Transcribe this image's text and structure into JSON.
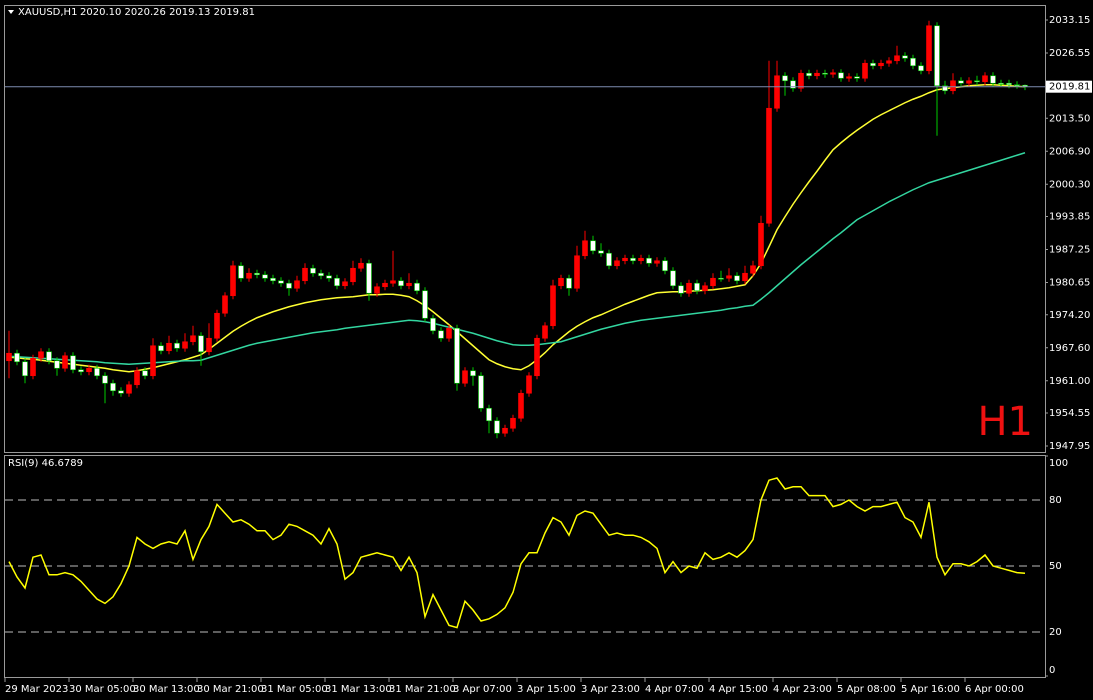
{
  "chart_data": [
    {
      "type": "candlestick",
      "header": {
        "symbol": "XAUUSD,H1",
        "ohlc": "2020.10 2020.26 2019.13 2019.81"
      },
      "badge": "H1",
      "categories": [
        "29 Mar 2023",
        null,
        null,
        null,
        null,
        null,
        null,
        null,
        "30 Mar 05:00",
        null,
        null,
        null,
        null,
        null,
        null,
        null,
        "30 Mar 13:00",
        null,
        null,
        null,
        null,
        null,
        null,
        null,
        "30 Mar 21:00",
        null,
        null,
        null,
        null,
        null,
        null,
        null,
        "31 Mar 05:00",
        null,
        null,
        null,
        null,
        null,
        null,
        null,
        "31 Mar 13:00",
        null,
        null,
        null,
        null,
        null,
        null,
        null,
        "31 Mar 21:00",
        null,
        null,
        null,
        null,
        null,
        null,
        null,
        "3 Apr 07:00",
        null,
        null,
        null,
        null,
        null,
        null,
        null,
        "3 Apr 15:00",
        null,
        null,
        null,
        null,
        null,
        null,
        null,
        "3 Apr 23:00",
        null,
        null,
        null,
        null,
        null,
        null,
        null,
        "4 Apr 07:00",
        null,
        null,
        null,
        null,
        null,
        null,
        null,
        "4 Apr 15:00",
        null,
        null,
        null,
        null,
        null,
        null,
        null,
        "4 Apr 23:00",
        null,
        null,
        null,
        null,
        null,
        null,
        null,
        "5 Apr 08:00",
        null,
        null,
        null,
        null,
        null,
        null,
        null,
        "5 Apr 16:00",
        null,
        null,
        null,
        null,
        null,
        null,
        null,
        "6 Apr 00:00",
        null,
        null,
        null,
        null,
        null,
        null,
        null
      ],
      "open": [
        1965.0,
        1966.5,
        1964.8,
        1962.0,
        1965.5,
        1966.8,
        1965.0,
        1963.5,
        1966.0,
        1963.2,
        1962.8,
        1963.5,
        1962.0,
        1960.5,
        1959.0,
        1958.5,
        1960.2,
        1963.0,
        1962.0,
        1968.0,
        1967.0,
        1968.5,
        1967.5,
        1968.8,
        1970.0,
        1966.8,
        1969.5,
        1974.5,
        1978.0,
        1984.0,
        1981.5,
        1982.5,
        1982.2,
        1981.5,
        1981.0,
        1980.5,
        1979.5,
        1981.0,
        1983.5,
        1982.5,
        1982.0,
        1981.5,
        1980.0,
        1980.8,
        1983.5,
        1984.5,
        1978.5,
        1979.8,
        1980.5,
        1981.0,
        1980.0,
        1980.5,
        1979.0,
        1973.5,
        1971.0,
        1969.5,
        1971.5,
        1960.5,
        1963.0,
        1962.0,
        1955.5,
        1953.0,
        1950.5,
        1951.5,
        1953.5,
        1958.5,
        1962.0,
        1969.5,
        1972.0,
        1980.0,
        1981.5,
        1979.5,
        1986.0,
        1989.0,
        1987.0,
        1986.5,
        1984.0,
        1985.0,
        1985.5,
        1985.0,
        1985.5,
        1984.5,
        1985.0,
        1983.0,
        1980.0,
        1978.5,
        1980.5,
        1979.0,
        1980.0,
        1981.5,
        1981.5,
        1982.0,
        1981.0,
        1982.5,
        1984.0,
        1992.5,
        2015.5,
        2022.0,
        2021.0,
        2019.5,
        2022.5,
        2022.0,
        2022.5,
        2022.3,
        2022.6,
        2021.5,
        2021.8,
        2021.5,
        2024.5,
        2024.0,
        2024.5,
        2025.0,
        2026.0,
        2025.5,
        2024.0,
        2023.0,
        2032.0,
        2020.0,
        2019.0,
        2021.0,
        2020.5,
        2021.0,
        2020.8,
        2022.0,
        2020.5,
        2020.5,
        2020.2,
        2020.1
      ],
      "high": [
        1971.0,
        1967.2,
        1965.5,
        1966.2,
        1967.5,
        1967.5,
        1965.7,
        1966.7,
        1966.7,
        1963.9,
        1964.2,
        1964.2,
        1962.7,
        1961.2,
        1959.7,
        1960.9,
        1963.7,
        1963.7,
        1969.5,
        1968.7,
        1970.0,
        1969.2,
        1970.5,
        1972.0,
        1970.7,
        1972.5,
        1975.2,
        1978.7,
        1985.0,
        1984.7,
        1983.5,
        1983.2,
        1982.9,
        1982.2,
        1981.7,
        1981.2,
        1982.0,
        1984.5,
        1984.2,
        1983.2,
        1982.7,
        1982.2,
        1981.5,
        1985.0,
        1985.5,
        1985.2,
        1980.5,
        1981.2,
        1987.0,
        1981.7,
        1982.5,
        1981.2,
        1979.7,
        1974.2,
        1971.7,
        1972.2,
        1972.2,
        1963.7,
        1963.7,
        1962.7,
        1956.2,
        1953.7,
        1952.2,
        1954.2,
        1959.2,
        1962.7,
        1970.2,
        1972.7,
        1981.2,
        1982.2,
        1982.2,
        1988.0,
        1991.0,
        1990.0,
        1988.5,
        1987.2,
        1985.7,
        1986.2,
        1986.2,
        1986.2,
        1986.2,
        1985.7,
        1985.7,
        1983.7,
        1980.7,
        1981.2,
        1981.2,
        1980.7,
        1982.5,
        1983.0,
        1983.5,
        1982.7,
        1984.0,
        1985.0,
        1994.0,
        2025.0,
        2025.0,
        2022.7,
        2021.7,
        2023.2,
        2023.2,
        2023.2,
        2023.2,
        2023.3,
        2023.3,
        2022.5,
        2022.5,
        2025.2,
        2025.2,
        2025.2,
        2025.7,
        2028.0,
        2026.7,
        2026.2,
        2024.7,
        2033.0,
        2032.7,
        2021.0,
        2022.5,
        2021.7,
        2021.7,
        2022.0,
        2022.7,
        2022.7,
        2021.2,
        2021.2,
        2020.9,
        2020.26
      ],
      "low": [
        1961.5,
        1964.1,
        1960.5,
        1961.3,
        1964.8,
        1964.3,
        1962.0,
        1962.8,
        1962.5,
        1962.1,
        1962.1,
        1961.3,
        1956.5,
        1958.0,
        1957.8,
        1957.8,
        1959.5,
        1961.3,
        1961.3,
        1966.3,
        1966.3,
        1966.8,
        1966.8,
        1968.1,
        1964.0,
        1966.1,
        1968.8,
        1973.8,
        1977.3,
        1980.8,
        1980.8,
        1981.5,
        1980.8,
        1980.3,
        1979.8,
        1978.0,
        1978.8,
        1980.3,
        1981.8,
        1981.3,
        1980.8,
        1979.3,
        1979.3,
        1980.1,
        1982.8,
        1977.0,
        1977.8,
        1979.1,
        1979.8,
        1979.3,
        1979.3,
        1978.3,
        1972.8,
        1970.3,
        1968.8,
        1968.8,
        1959.0,
        1959.8,
        1960.0,
        1954.8,
        1950.5,
        1949.5,
        1949.8,
        1950.8,
        1952.8,
        1957.8,
        1961.3,
        1968.8,
        1971.3,
        1979.3,
        1978.0,
        1978.8,
        1985.3,
        1986.3,
        1985.8,
        1983.3,
        1983.3,
        1984.3,
        1984.3,
        1984.3,
        1983.8,
        1983.8,
        1982.3,
        1979.3,
        1977.8,
        1977.8,
        1978.3,
        1978.3,
        1979.3,
        1980.8,
        1980.8,
        1980.3,
        1980.3,
        1981.8,
        1983.3,
        1991.8,
        2014.8,
        2018.0,
        2018.8,
        2018.8,
        2021.3,
        2021.3,
        2021.6,
        2021.6,
        2020.8,
        2020.8,
        2020.8,
        2020.8,
        2023.3,
        2023.3,
        2023.8,
        2024.3,
        2024.8,
        2023.3,
        2022.3,
        2022.3,
        2010.0,
        2018.3,
        2018.3,
        2019.8,
        2019.8,
        2020.1,
        2020.1,
        2019.8,
        2019.8,
        2019.5,
        2019.4,
        2019.13
      ],
      "close": [
        1966.5,
        1964.8,
        1962.0,
        1965.5,
        1966.8,
        1965.0,
        1963.5,
        1966.0,
        1963.2,
        1962.8,
        1963.5,
        1962.0,
        1960.5,
        1959.0,
        1958.5,
        1960.2,
        1963.0,
        1962.0,
        1968.0,
        1967.0,
        1968.5,
        1967.5,
        1968.8,
        1970.0,
        1966.8,
        1969.5,
        1974.5,
        1978.0,
        1984.0,
        1981.5,
        1982.5,
        1982.2,
        1981.5,
        1981.0,
        1980.5,
        1979.5,
        1981.0,
        1983.5,
        1982.5,
        1982.0,
        1981.5,
        1980.0,
        1980.8,
        1983.5,
        1984.5,
        1978.5,
        1979.8,
        1980.5,
        1981.0,
        1980.0,
        1980.5,
        1979.0,
        1973.5,
        1971.0,
        1969.5,
        1971.5,
        1960.5,
        1963.0,
        1962.0,
        1955.5,
        1953.0,
        1950.5,
        1951.5,
        1953.5,
        1958.5,
        1962.0,
        1969.5,
        1972.0,
        1980.0,
        1981.5,
        1979.5,
        1986.0,
        1989.0,
        1987.0,
        1986.5,
        1984.0,
        1985.0,
        1985.5,
        1985.0,
        1985.5,
        1984.5,
        1985.0,
        1983.0,
        1980.0,
        1978.5,
        1980.5,
        1979.0,
        1980.0,
        1981.5,
        1981.5,
        1982.0,
        1981.0,
        1982.5,
        1984.0,
        1992.5,
        2015.5,
        2022.0,
        2021.0,
        2019.5,
        2022.5,
        2022.0,
        2022.5,
        2022.3,
        2022.6,
        2021.5,
        2021.8,
        2021.5,
        2024.5,
        2024.0,
        2024.5,
        2025.0,
        2026.0,
        2025.5,
        2024.0,
        2023.0,
        2032.0,
        2020.0,
        2019.0,
        2021.0,
        2020.5,
        2021.0,
        2020.8,
        2022.0,
        2020.5,
        2020.5,
        2020.2,
        2020.1,
        2019.81
      ],
      "up_color": "#ff0000",
      "down_color": "#ffffff",
      "down_outline": "#00cc00",
      "lines": [
        {
          "color": "#ffff33",
          "values": [
            1965.7,
            1965.6,
            1965.4,
            1965.3,
            1965.1,
            1964.9,
            1964.7,
            1964.5,
            1964.3,
            1964.1,
            1963.9,
            1963.7,
            1963.5,
            1963.2,
            1963.0,
            1962.8,
            1963.0,
            1963.3,
            1963.6,
            1964.0,
            1964.4,
            1964.8,
            1965.2,
            1965.7,
            1966.2,
            1967.3,
            1968.5,
            1969.7,
            1970.9,
            1971.9,
            1972.8,
            1973.6,
            1974.2,
            1974.8,
            1975.3,
            1975.8,
            1976.2,
            1976.6,
            1976.9,
            1977.2,
            1977.4,
            1977.6,
            1977.7,
            1977.8,
            1978.0,
            1978.2,
            1978.2,
            1978.3,
            1978.3,
            1978.1,
            1977.8,
            1977.0,
            1976.0,
            1974.8,
            1973.5,
            1972.2,
            1970.8,
            1969.4,
            1968.0,
            1966.6,
            1965.2,
            1964.4,
            1963.8,
            1963.4,
            1963.2,
            1964.0,
            1965.2,
            1966.6,
            1968.2,
            1969.5,
            1970.8,
            1971.9,
            1972.8,
            1973.6,
            1974.2,
            1974.9,
            1975.6,
            1976.3,
            1976.9,
            1977.5,
            1978.1,
            1978.6,
            1978.7,
            1978.8,
            1978.8,
            1978.9,
            1979.0,
            1979.1,
            1979.2,
            1979.4,
            1979.6,
            1979.9,
            1980.2,
            1982.0,
            1984.5,
            1987.8,
            1991.2,
            1993.8,
            1996.3,
            1998.6,
            2000.8,
            2002.9,
            2005.1,
            2007.2,
            2008.6,
            2009.9,
            2011.1,
            2012.2,
            2013.3,
            2014.2,
            2015.0,
            2015.8,
            2016.6,
            2017.3,
            2017.9,
            2018.6,
            2019.2,
            2019.4,
            2019.6,
            2019.8,
            2020.0,
            2020.1,
            2020.2,
            2020.2,
            2020.1,
            2020.0,
            2019.9,
            2019.8
          ]
        },
        {
          "color": "#33d6a0",
          "values": [
            1965.9,
            1965.8,
            1965.7,
            1965.6,
            1965.5,
            1965.4,
            1965.3,
            1965.2,
            1965.1,
            1965.0,
            1964.9,
            1964.8,
            1964.6,
            1964.5,
            1964.4,
            1964.3,
            1964.4,
            1964.5,
            1964.6,
            1964.7,
            1964.8,
            1964.9,
            1965.0,
            1965.0,
            1965.1,
            1965.6,
            1966.1,
            1966.6,
            1967.1,
            1967.6,
            1968.1,
            1968.5,
            1968.8,
            1969.1,
            1969.4,
            1969.7,
            1970.0,
            1970.3,
            1970.6,
            1970.8,
            1971.0,
            1971.2,
            1971.5,
            1971.7,
            1971.9,
            1972.1,
            1972.3,
            1972.5,
            1972.7,
            1972.9,
            1973.1,
            1973.0,
            1972.8,
            1972.5,
            1972.1,
            1971.7,
            1971.3,
            1970.9,
            1970.5,
            1970.0,
            1969.5,
            1969.0,
            1968.6,
            1968.2,
            1968.1,
            1968.1,
            1968.2,
            1968.4,
            1968.6,
            1968.8,
            1969.3,
            1969.8,
            1970.3,
            1970.8,
            1971.3,
            1971.7,
            1972.1,
            1972.5,
            1972.8,
            1973.1,
            1973.3,
            1973.5,
            1973.7,
            1973.9,
            1974.1,
            1974.3,
            1974.5,
            1974.7,
            1974.9,
            1975.1,
            1975.4,
            1975.6,
            1975.9,
            1976.1,
            1977.3,
            1978.6,
            1980.0,
            1981.4,
            1982.8,
            1984.2,
            1985.5,
            1986.8,
            1988.1,
            1989.4,
            1990.6,
            1991.9,
            1993.2,
            1994.1,
            1995.0,
            1995.9,
            1996.8,
            1997.6,
            1998.4,
            1999.2,
            1999.9,
            2000.6,
            2001.1,
            2001.6,
            2002.1,
            2002.6,
            2003.1,
            2003.6,
            2004.1,
            2004.6,
            2005.1,
            2005.6,
            2006.1,
            2006.6
          ]
        }
      ],
      "ylim": [
        1946.95,
        2035.75
      ],
      "yticks": [
        2033.15,
        2026.55,
        {
          "value": 2013.5,
          "label": "2013.50"
        },
        {
          "value": 2006.9,
          "label": "2006.90"
        },
        {
          "value": 2000.3,
          "label": "2000.30"
        },
        1993.85,
        1987.25,
        1980.65,
        {
          "value": 1974.2,
          "label": "1974.20"
        },
        {
          "value": 1967.6,
          "label": "1967.60"
        },
        {
          "value": 1961,
          "label": "1961.00"
        },
        1954.55,
        1947.95
      ],
      "last_price": 2019.81
    },
    {
      "type": "line",
      "title": "RSI(9) 46.6789",
      "color": "#ffff00",
      "values": [
        52,
        45,
        40,
        54,
        55,
        46,
        46,
        47,
        46,
        43,
        39,
        35,
        33,
        36,
        42,
        50,
        63,
        60,
        58,
        60,
        61,
        60,
        66,
        53,
        62,
        68,
        78,
        74,
        70,
        71,
        69,
        66,
        66,
        62,
        64,
        69,
        68,
        66,
        64,
        60,
        67,
        60,
        44,
        47,
        54,
        55,
        56,
        55,
        54,
        48,
        54,
        47,
        27,
        37,
        30,
        23,
        22,
        34,
        30,
        25,
        26,
        28,
        31,
        38,
        51,
        56,
        56,
        65,
        72,
        70,
        64,
        73,
        75,
        74,
        69,
        64,
        65,
        64,
        64,
        63,
        61,
        58,
        47,
        52,
        47,
        50,
        49,
        56,
        53,
        54,
        56,
        54,
        57,
        62,
        80,
        89,
        90,
        85,
        86,
        86,
        82,
        82,
        82,
        77,
        78,
        80,
        77,
        75,
        77,
        77,
        78,
        79,
        72,
        70,
        63,
        79,
        54,
        46,
        51,
        51,
        50,
        52,
        55,
        50,
        49,
        48,
        47,
        46.6789
      ],
      "ylim": [
        0,
        100
      ],
      "yticks": [
        100,
        80,
        50,
        20,
        0
      ],
      "grid": true
    }
  ]
}
